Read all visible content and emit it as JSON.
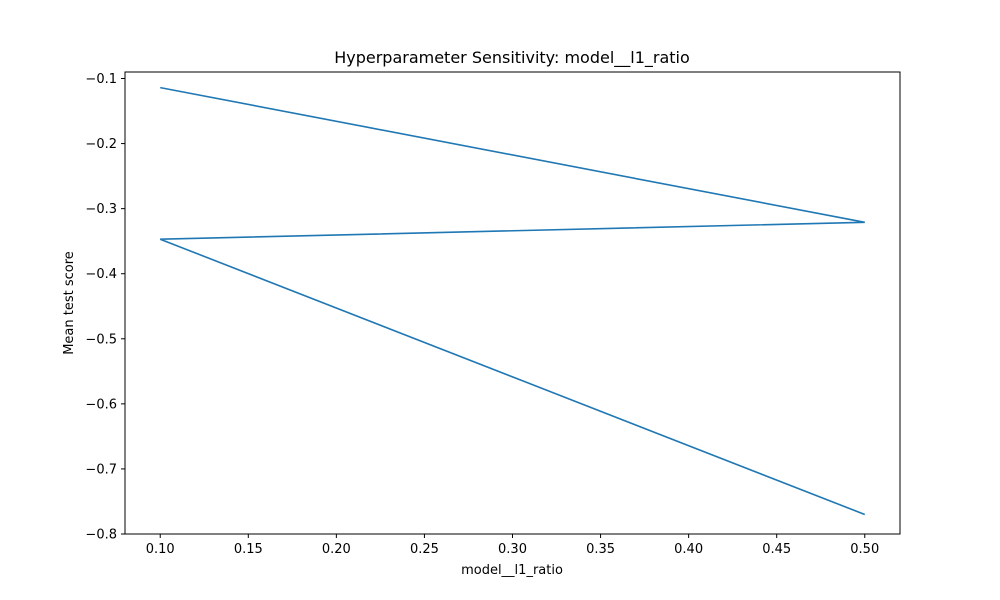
{
  "chart_data": {
    "type": "line",
    "title": "Hyperparameter Sensitivity: model__l1_ratio",
    "xlabel": "model__l1_ratio",
    "ylabel": "Mean test score",
    "xlim": [
      0.08,
      0.52
    ],
    "ylim": [
      -0.8,
      -0.09
    ],
    "xticks": [
      0.1,
      0.15,
      0.2,
      0.25,
      0.3,
      0.35,
      0.4,
      0.45,
      0.5
    ],
    "xtick_labels": [
      "0.10",
      "0.15",
      "0.20",
      "0.25",
      "0.30",
      "0.35",
      "0.40",
      "0.45",
      "0.50"
    ],
    "yticks": [
      -0.1,
      -0.2,
      -0.3,
      -0.4,
      -0.5,
      -0.6,
      -0.7,
      -0.8
    ],
    "ytick_labels": [
      "−0.1",
      "−0.2",
      "−0.3",
      "−0.4",
      "−0.5",
      "−0.6",
      "−0.7",
      "−0.8"
    ],
    "grid": false,
    "series": [
      {
        "color": "#1f77b4",
        "x": [
          0.1,
          0.5,
          0.1,
          0.5
        ],
        "y": [
          -0.114,
          -0.321,
          -0.347,
          -0.77
        ]
      }
    ]
  }
}
